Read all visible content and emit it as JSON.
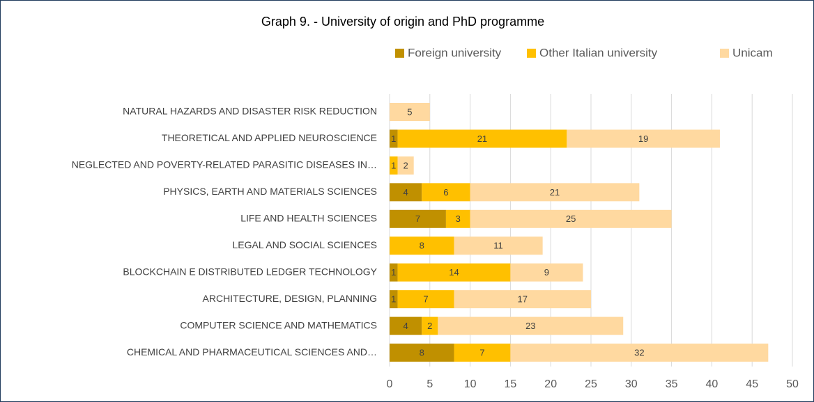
{
  "chart_data": {
    "type": "stacked-barh",
    "title": "Graph 9. -   University of origin and PhD programme",
    "categories": [
      "NATURAL HAZARDS AND DISASTER RISK REDUCTION",
      "THEORETICAL AND APPLIED NEUROSCIENCE",
      "NEGLECTED AND POVERTY-RELATED PARASITIC DISEASES IN…",
      "PHYSICS, EARTH AND MATERIALS SCIENCES",
      "LIFE AND HEALTH SCIENCES",
      "LEGAL AND SOCIAL SCIENCES",
      "BLOCKCHAIN E DISTRIBUTED LEDGER TECHNOLOGY",
      "ARCHITECTURE, DESIGN, PLANNING",
      "COMPUTER SCIENCE AND MATHEMATICS",
      "CHEMICAL AND PHARMACEUTICAL SCIENCES AND…"
    ],
    "series": [
      {
        "name": "Foreign university",
        "color": "#c09000",
        "values": [
          0,
          1,
          0,
          4,
          7,
          0,
          1,
          1,
          4,
          8
        ]
      },
      {
        "name": "Other Italian university",
        "color": "#ffc000",
        "values": [
          0,
          21,
          1,
          6,
          3,
          8,
          14,
          7,
          2,
          7
        ]
      },
      {
        "name": "Unicam",
        "color": "#ffd9a0",
        "values": [
          5,
          19,
          2,
          21,
          25,
          11,
          9,
          17,
          23,
          32
        ]
      }
    ],
    "xlim": [
      0,
      50
    ],
    "xticks": [
      0,
      5,
      10,
      15,
      20,
      25,
      30,
      35,
      40,
      45,
      50
    ],
    "grid": true,
    "legend": "top"
  }
}
